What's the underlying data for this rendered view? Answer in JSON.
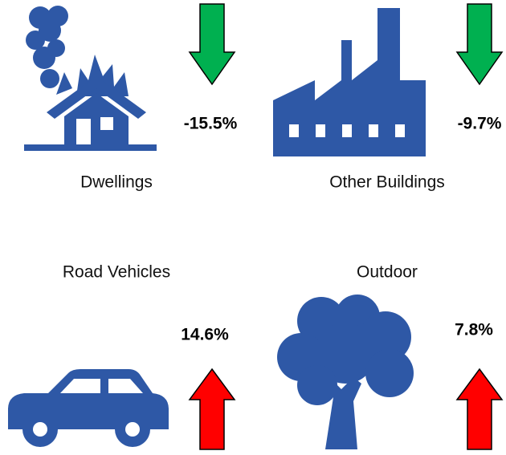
{
  "items": [
    {
      "label": "Dwellings",
      "change": "-15.5%",
      "direction": "down",
      "color": "#00b050"
    },
    {
      "label": "Other Buildings",
      "change": "-9.7%",
      "direction": "down",
      "color": "#00b050"
    },
    {
      "label": "Road Vehicles",
      "change": "14.6%",
      "direction": "up",
      "color": "#ff0000"
    },
    {
      "label": "Outdoor",
      "change": "7.8%",
      "direction": "up",
      "color": "#ff0000"
    }
  ]
}
